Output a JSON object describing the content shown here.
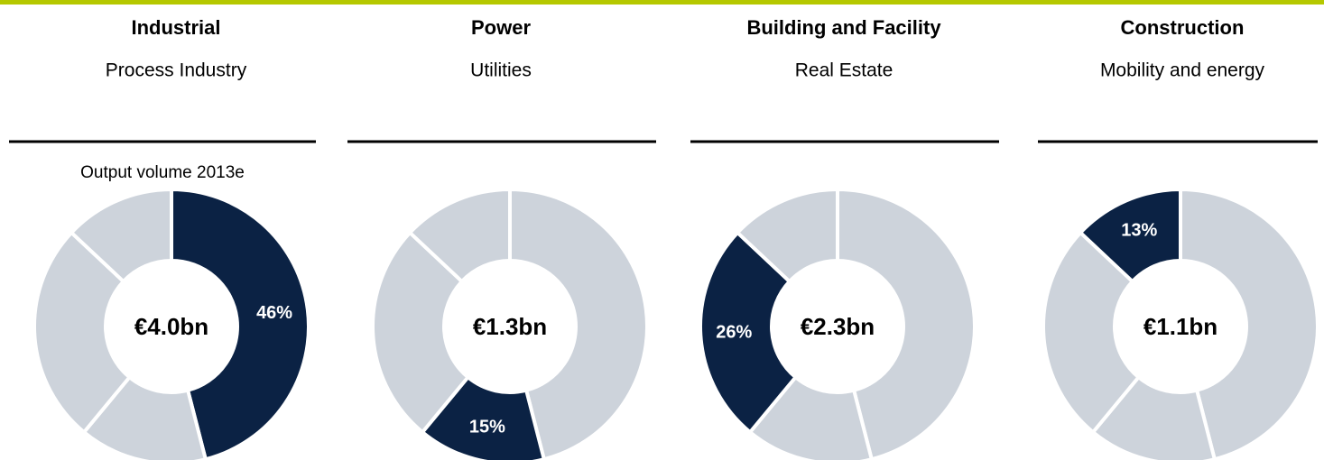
{
  "chart_data": [
    {
      "type": "donut",
      "title": "Industrial",
      "subtitle": "Process Industry",
      "annotation": "Output volume 2013e",
      "center_label": "€4.0bn",
      "values": [
        46,
        15,
        26,
        13
      ],
      "value_labels": [
        "46%",
        null,
        null,
        null
      ],
      "colors": [
        "#0b2244",
        "#cdd3db",
        "#cdd3db",
        "#cdd3db"
      ]
    },
    {
      "type": "donut",
      "title": "Power",
      "subtitle": "Utilities",
      "center_label": "€1.3bn",
      "values": [
        46,
        15,
        26,
        13
      ],
      "value_labels": [
        null,
        "15%",
        null,
        null
      ],
      "colors": [
        "#cdd3db",
        "#0b2244",
        "#cdd3db",
        "#cdd3db"
      ]
    },
    {
      "type": "donut",
      "title": "Building and Facility",
      "subtitle": "Real Estate",
      "center_label": "€2.3bn",
      "values": [
        46,
        15,
        26,
        13
      ],
      "value_labels": [
        null,
        null,
        "26%",
        null
      ],
      "colors": [
        "#cdd3db",
        "#cdd3db",
        "#0b2244",
        "#cdd3db"
      ]
    },
    {
      "type": "donut",
      "title": "Construction",
      "subtitle": "Mobility and energy",
      "center_label": "€1.1bn",
      "values": [
        46,
        15,
        26,
        13
      ],
      "value_labels": [
        null,
        null,
        null,
        "13%"
      ],
      "colors": [
        "#cdd3db",
        "#cdd3db",
        "#cdd3db",
        "#0b2244"
      ]
    }
  ]
}
